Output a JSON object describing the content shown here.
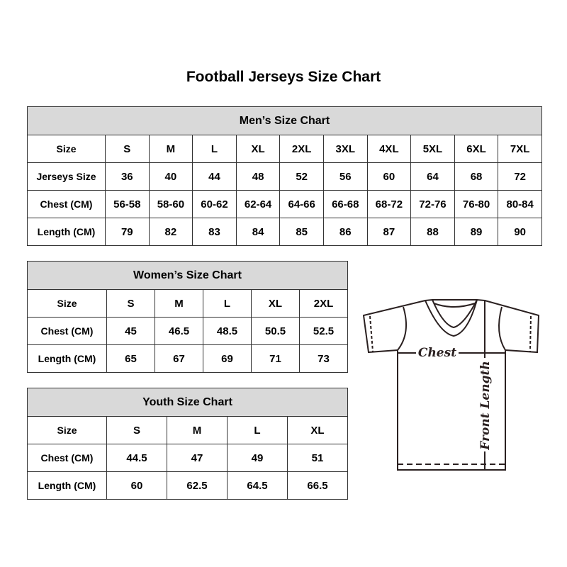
{
  "title": "Football Jerseys Size Chart",
  "men": {
    "heading": "Men’s Size Chart",
    "rows": [
      {
        "label": "Size",
        "values": [
          "S",
          "M",
          "L",
          "XL",
          "2XL",
          "3XL",
          "4XL",
          "5XL",
          "6XL",
          "7XL"
        ]
      },
      {
        "label": "Jerseys Size",
        "values": [
          "36",
          "40",
          "44",
          "48",
          "52",
          "56",
          "60",
          "64",
          "68",
          "72"
        ]
      },
      {
        "label": "Chest (CM)",
        "values": [
          "56-58",
          "58-60",
          "60-62",
          "62-64",
          "64-66",
          "66-68",
          "68-72",
          "72-76",
          "76-80",
          "80-84"
        ]
      },
      {
        "label": "Length (CM)",
        "values": [
          "79",
          "82",
          "83",
          "84",
          "85",
          "86",
          "87",
          "88",
          "89",
          "90"
        ]
      }
    ]
  },
  "women": {
    "heading": "Women’s Size Chart",
    "rows": [
      {
        "label": "Size",
        "values": [
          "S",
          "M",
          "L",
          "XL",
          "2XL"
        ]
      },
      {
        "label": "Chest (CM)",
        "values": [
          "45",
          "46.5",
          "48.5",
          "50.5",
          "52.5"
        ]
      },
      {
        "label": "Length (CM)",
        "values": [
          "65",
          "67",
          "69",
          "71",
          "73"
        ]
      }
    ]
  },
  "youth": {
    "heading": "Youth Size Chart",
    "rows": [
      {
        "label": "Size",
        "values": [
          "S",
          "M",
          "L",
          "XL"
        ]
      },
      {
        "label": "Chest (CM)",
        "values": [
          "44.5",
          "47",
          "49",
          "51"
        ]
      },
      {
        "label": "Length (CM)",
        "values": [
          "60",
          "62.5",
          "64.5",
          "66.5"
        ]
      }
    ]
  },
  "diagram": {
    "chest_label": "Chest",
    "length_label": "Front Length"
  },
  "colors": {
    "header_bg": "#d9d9d9",
    "border": "#333333"
  }
}
